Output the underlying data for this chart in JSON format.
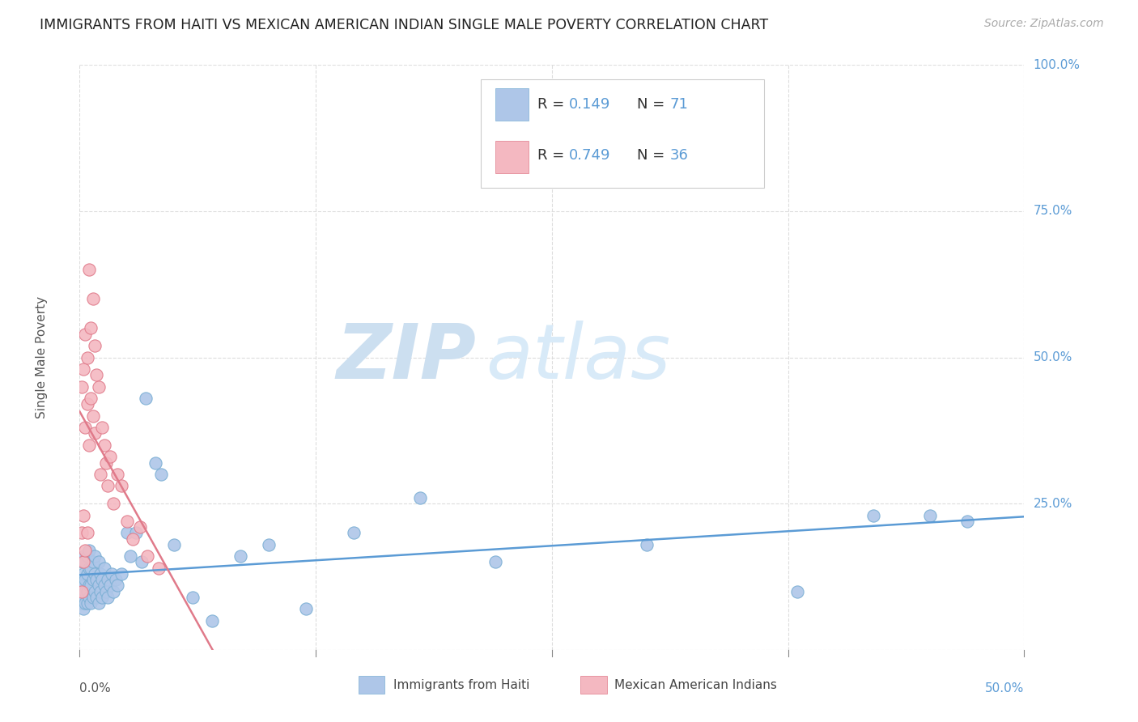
{
  "title": "IMMIGRANTS FROM HAITI VS MEXICAN AMERICAN INDIAN SINGLE MALE POVERTY CORRELATION CHART",
  "source": "Source: ZipAtlas.com",
  "ylabel": "Single Male Poverty",
  "xlim": [
    0.0,
    0.5
  ],
  "ylim": [
    0.0,
    1.0
  ],
  "background_color": "#ffffff",
  "grid_color": "#dddddd",
  "haiti_color": "#aec6e8",
  "haiti_edge_color": "#7bafd4",
  "mexican_color": "#f4b8c1",
  "mexican_edge_color": "#e07a8a",
  "haiti_line_color": "#5b9bd5",
  "mexican_line_color": "#e07a8a",
  "watermark_zip": "ZIP",
  "watermark_atlas": "atlas",
  "watermark_color_zip": "#c8dff0",
  "watermark_color_atlas": "#b8d0e8",
  "haiti_points_x": [
    0.001,
    0.001,
    0.001,
    0.001,
    0.002,
    0.002,
    0.002,
    0.002,
    0.002,
    0.003,
    0.003,
    0.003,
    0.003,
    0.004,
    0.004,
    0.004,
    0.004,
    0.005,
    0.005,
    0.005,
    0.005,
    0.006,
    0.006,
    0.006,
    0.007,
    0.007,
    0.007,
    0.008,
    0.008,
    0.008,
    0.009,
    0.009,
    0.01,
    0.01,
    0.01,
    0.011,
    0.011,
    0.012,
    0.012,
    0.013,
    0.013,
    0.014,
    0.015,
    0.015,
    0.016,
    0.017,
    0.018,
    0.019,
    0.02,
    0.022,
    0.025,
    0.027,
    0.03,
    0.033,
    0.035,
    0.04,
    0.043,
    0.05,
    0.06,
    0.07,
    0.085,
    0.1,
    0.12,
    0.145,
    0.18,
    0.22,
    0.3,
    0.38,
    0.42,
    0.45,
    0.47
  ],
  "haiti_points_y": [
    0.08,
    0.1,
    0.12,
    0.15,
    0.07,
    0.09,
    0.11,
    0.13,
    0.16,
    0.08,
    0.1,
    0.12,
    0.15,
    0.08,
    0.1,
    0.13,
    0.16,
    0.09,
    0.11,
    0.14,
    0.17,
    0.08,
    0.11,
    0.14,
    0.09,
    0.12,
    0.15,
    0.1,
    0.13,
    0.16,
    0.09,
    0.12,
    0.08,
    0.11,
    0.15,
    0.1,
    0.13,
    0.09,
    0.12,
    0.11,
    0.14,
    0.1,
    0.09,
    0.12,
    0.11,
    0.13,
    0.1,
    0.12,
    0.11,
    0.13,
    0.2,
    0.16,
    0.2,
    0.15,
    0.43,
    0.32,
    0.3,
    0.18,
    0.09,
    0.05,
    0.16,
    0.18,
    0.07,
    0.2,
    0.26,
    0.15,
    0.18,
    0.1,
    0.23,
    0.23,
    0.22
  ],
  "mexican_points_x": [
    0.001,
    0.001,
    0.001,
    0.002,
    0.002,
    0.002,
    0.003,
    0.003,
    0.003,
    0.004,
    0.004,
    0.004,
    0.005,
    0.005,
    0.006,
    0.006,
    0.007,
    0.007,
    0.008,
    0.008,
    0.009,
    0.01,
    0.011,
    0.012,
    0.013,
    0.014,
    0.015,
    0.016,
    0.018,
    0.02,
    0.022,
    0.025,
    0.028,
    0.032,
    0.036,
    0.042
  ],
  "mexican_points_y": [
    0.1,
    0.2,
    0.45,
    0.15,
    0.23,
    0.48,
    0.17,
    0.38,
    0.54,
    0.42,
    0.2,
    0.5,
    0.35,
    0.65,
    0.43,
    0.55,
    0.4,
    0.6,
    0.37,
    0.52,
    0.47,
    0.45,
    0.3,
    0.38,
    0.35,
    0.32,
    0.28,
    0.33,
    0.25,
    0.3,
    0.28,
    0.22,
    0.19,
    0.21,
    0.16,
    0.14
  ]
}
